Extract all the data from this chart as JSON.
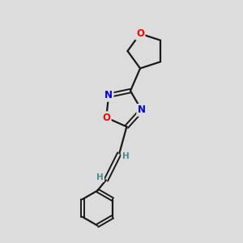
{
  "background_color": "#dcdcdc",
  "bond_color": "#1a1a1a",
  "atom_colors": {
    "O": "#ff0000",
    "N": "#0000cd",
    "C": "#1a1a1a",
    "H": "#4a8a8a"
  },
  "figsize": [
    3.0,
    3.0
  ],
  "dpi": 100
}
